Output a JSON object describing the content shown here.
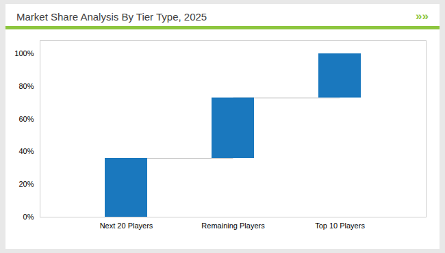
{
  "chart_data": {
    "type": "waterfall",
    "title": "Market Share Analysis By Tier Type, 2025",
    "annotations": [
      "»»"
    ],
    "categories": [
      "Next 20 Players",
      "Remaining Players",
      "Top 10 Players"
    ],
    "values": [
      36,
      37,
      27
    ],
    "color": "#1a78be",
    "ylim": [
      0,
      108
    ],
    "yticks": [
      {
        "value": 0,
        "label": "0%"
      },
      {
        "value": 20,
        "label": "20%"
      },
      {
        "value": 40,
        "label": "40%"
      },
      {
        "value": 60,
        "label": "60%"
      },
      {
        "value": 80,
        "label": "80%"
      },
      {
        "value": 100,
        "label": "100%"
      }
    ],
    "grid": false
  }
}
